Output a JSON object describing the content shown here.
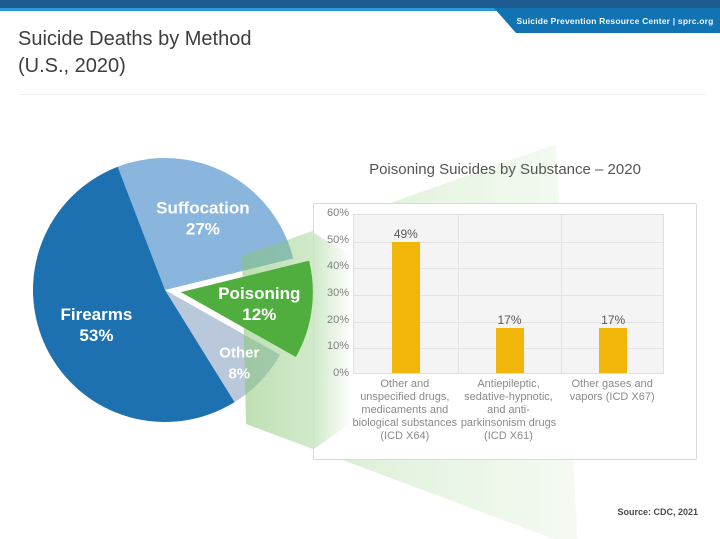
{
  "banner": {
    "text": "Suicide Prevention Resource Center  |  sprc.org"
  },
  "header": {
    "title_line1": "Suicide Deaths by Method",
    "title_line2": "(U.S., 2020)"
  },
  "source": {
    "text": "Source: CDC, 2021"
  },
  "colors": {
    "header_strip": "#1d5b90",
    "header_accent_line": "#2e9ad5",
    "banner_tab": "#1173b2",
    "callout_beam_green": "#8cc873",
    "panel_border": "#d9d9d9"
  },
  "chart_data": [
    {
      "type": "pie",
      "title": "Suicide Deaths by Method (U.S., 2020)",
      "slices": [
        {
          "label": "Suffocation",
          "value": 27,
          "color": "#8AB6DE"
        },
        {
          "label": "Poisoning",
          "value": 12,
          "color": "#4FAE3D"
        },
        {
          "label": "Other",
          "value": 8,
          "color": "#B9C9DB"
        },
        {
          "label": "Firearms",
          "value": 53,
          "color": "#1E71B0"
        }
      ],
      "start_angle_deg": -21,
      "exploded_slice": "Poisoning",
      "label_format": "name + percent"
    },
    {
      "type": "bar",
      "title": "Poisoning Suicides by Substance – 2020",
      "categories": [
        "Other and unspecified drugs, medicaments and biological substances (ICD X64)",
        "Antiepileptic, sedative-hypnotic, and anti-parkinsonism drugs (ICD X61)",
        "Other gases and vapors (ICD X67)"
      ],
      "values": [
        49,
        17,
        17
      ],
      "value_labels": [
        "49%",
        "17%",
        "17%"
      ],
      "ylim": [
        0,
        60
      ],
      "ytick_step": 10,
      "ytick_labels": [
        "0%",
        "10%",
        "20%",
        "30%",
        "40%",
        "50%",
        "60%"
      ],
      "bar_color": "#F2B50A",
      "grid": true,
      "legend": false
    }
  ]
}
